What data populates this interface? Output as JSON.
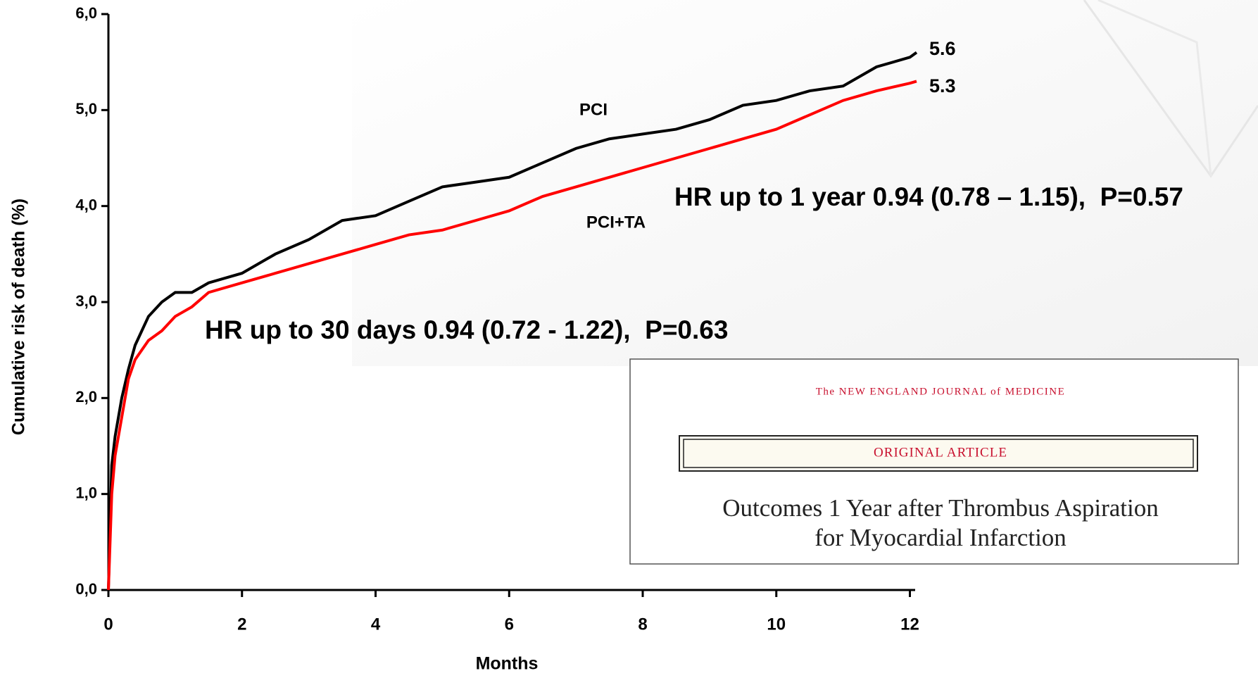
{
  "chart_data": {
    "type": "line",
    "x_label": "Months",
    "y_label": "Cumulative risk of death (%)",
    "xlim": [
      0,
      12.1
    ],
    "xticks": [
      0,
      2,
      4,
      6,
      8,
      10,
      12
    ],
    "ylim": [
      0,
      6
    ],
    "yticks": [
      {
        "value": 0,
        "label": "0,0"
      },
      {
        "value": 1,
        "label": "1,0"
      },
      {
        "value": 2,
        "label": "2,0"
      },
      {
        "value": 3,
        "label": "3,0"
      },
      {
        "value": 4,
        "label": "4,0"
      },
      {
        "value": 5,
        "label": "5,0"
      },
      {
        "value": 6,
        "label": "6,0"
      }
    ],
    "x": [
      0,
      0.05,
      0.1,
      0.2,
      0.3,
      0.4,
      0.5,
      0.6,
      0.8,
      1,
      1.25,
      1.5,
      2,
      2.5,
      3,
      3.5,
      4,
      4.5,
      5,
      5.5,
      6,
      6.5,
      7,
      7.5,
      8,
      8.5,
      9,
      9.5,
      10,
      10.5,
      11,
      11.5,
      12,
      12.1
    ],
    "series": [
      {
        "name": "PCI",
        "color": "#000000",
        "values": [
          0,
          1.3,
          1.6,
          2.0,
          2.3,
          2.55,
          2.7,
          2.85,
          3.0,
          3.1,
          3.1,
          3.2,
          3.3,
          3.5,
          3.65,
          3.85,
          3.9,
          4.05,
          4.2,
          4.25,
          4.3,
          4.45,
          4.6,
          4.7,
          4.75,
          4.8,
          4.9,
          5.05,
          5.1,
          5.2,
          5.25,
          5.45,
          5.55,
          5.6
        ],
        "end_label": "5.6"
      },
      {
        "name": "PCI+TA",
        "color": "#ff0000",
        "values": [
          0,
          1.0,
          1.4,
          1.8,
          2.2,
          2.4,
          2.5,
          2.6,
          2.7,
          2.85,
          2.95,
          3.1,
          3.2,
          3.3,
          3.4,
          3.5,
          3.6,
          3.7,
          3.75,
          3.85,
          3.95,
          4.1,
          4.2,
          4.3,
          4.4,
          4.5,
          4.6,
          4.7,
          4.8,
          4.95,
          5.1,
          5.2,
          5.28,
          5.3
        ],
        "end_label": "5.3"
      }
    ],
    "annotations": [
      "HR up to 1 year 0.94 (0.78 – 1.15),  P=0.57",
      "HR up to 30 days 0.94 (0.72 - 1.22),  P=0.63"
    ]
  },
  "inset": {
    "journal": "The NEW ENGLAND JOURNAL of MEDICINE",
    "label": "ORIGINAL ARTICLE",
    "title_lines": [
      "Outcomes 1 Year after Thrombus Aspiration",
      "for Myocardial Infarction"
    ]
  }
}
